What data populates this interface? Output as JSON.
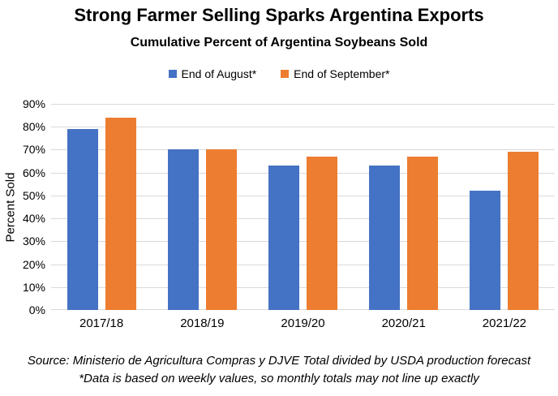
{
  "title": "Strong Farmer Selling Sparks Argentina Exports",
  "subtitle": "Cumulative Percent of Argentina Soybeans Sold",
  "chart_data": {
    "type": "bar",
    "categories": [
      "2017/18",
      "2018/19",
      "2019/20",
      "2020/21",
      "2021/22"
    ],
    "series": [
      {
        "name": "End of August*",
        "color": "#4472C4",
        "values": [
          79,
          70,
          63,
          63,
          52
        ]
      },
      {
        "name": "End of September*",
        "color": "#ED7D31",
        "values": [
          84,
          70,
          67,
          67,
          69
        ]
      }
    ],
    "title": "Cumulative Percent of Argentina Soybeans Sold",
    "xlabel": "",
    "ylabel": "Percent Sold",
    "ylim": [
      0,
      90
    ],
    "ytick_labels": [
      "0%",
      "10%",
      "20%",
      "30%",
      "40%",
      "50%",
      "60%",
      "70%",
      "80%",
      "90%"
    ],
    "grid": true,
    "legend_position": "top",
    "gridline_color": "#D9D9D9"
  },
  "footer": {
    "source_line": "Source: Ministerio de Agricultura Compras y DJVE Total divided by USDA production forecast",
    "note_line": "*Data is based on weekly values, so monthly totals may not line up exactly"
  }
}
